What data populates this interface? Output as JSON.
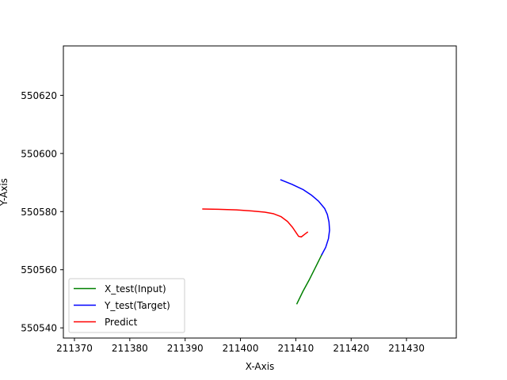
{
  "chart_data": {
    "type": "line",
    "title": "",
    "xlabel": "X-Axis",
    "ylabel": "Y-Axis",
    "xlim": [
      211368,
      211439
    ],
    "ylim": [
      550536.5,
      550637
    ],
    "grid": false,
    "legend_position": "lower-left",
    "x_ticks": [
      211370,
      211380,
      211390,
      211400,
      211410,
      211420,
      211430
    ],
    "y_ticks": [
      550540,
      550560,
      550580,
      550600,
      550620
    ],
    "x_tick_labels": [
      "211370",
      "211380",
      "211390",
      "211400",
      "211410",
      "211420",
      "211430"
    ],
    "y_tick_labels": [
      "550540",
      "550560",
      "550580",
      "550600",
      "550620"
    ],
    "series": [
      {
        "name": "X_test(Input)",
        "color": "#008000",
        "x": [
          211410.2,
          211411.3,
          211412.5,
          211413.6,
          211414.7
        ],
        "y": [
          550548.3,
          550552.6,
          550556.8,
          550561.0,
          550565.2
        ]
      },
      {
        "name": "Y_test(Target)",
        "color": "#0000ff",
        "x": [
          211407.3,
          211409.3,
          211411.3,
          211412.8,
          211414.1,
          211415.2,
          211415.7,
          211416.0,
          211416.1,
          211415.9,
          211415.4,
          211414.7
        ],
        "y": [
          550590.9,
          550589.4,
          550587.6,
          550585.7,
          550583.6,
          550581.1,
          550579.0,
          550576.4,
          550573.6,
          550570.7,
          550567.7,
          550565.2
        ]
      },
      {
        "name": "Predict",
        "color": "#ff0000",
        "x": [
          211393.2,
          211396.0,
          211399.3,
          211402.1,
          211404.4,
          211405.9,
          211407.3,
          211408.5,
          211409.4,
          211410.0,
          211410.5,
          211411.0,
          211411.6,
          211412.1
        ],
        "y": [
          550580.9,
          550580.8,
          550580.6,
          550580.2,
          550579.8,
          550579.3,
          550578.3,
          550576.6,
          550574.6,
          550572.9,
          550571.5,
          550571.3,
          550572.2,
          550572.9
        ]
      }
    ]
  }
}
